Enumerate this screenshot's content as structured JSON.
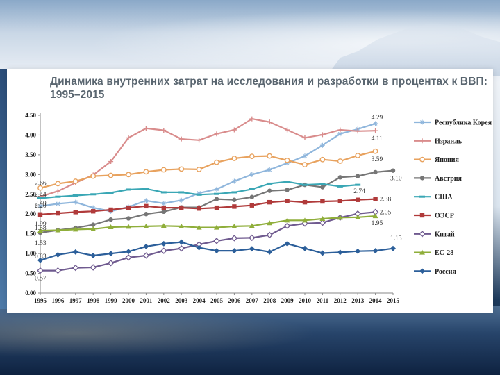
{
  "title": "Динамика внутренних затрат на исследования и разработки в процентах к ВВП: 1995–2015",
  "chart_data": {
    "type": "line",
    "title": "Динамика внутренних затрат на исследования и разработки в процентах к ВВП: 1995–2015",
    "categories": [
      "1995",
      "1996",
      "1997",
      "1998",
      "1999",
      "2000",
      "2001",
      "2002",
      "2003",
      "2004",
      "2005",
      "2006",
      "2007",
      "2008",
      "2009",
      "2010",
      "2011",
      "2012",
      "2013",
      "2014",
      "2015"
    ],
    "yticks": [
      "0.00",
      "0.50",
      "1.00",
      "1.50",
      "2.00",
      "2.50",
      "3.00",
      "3.50",
      "4.00",
      "4.50"
    ],
    "ylim": [
      0,
      4.5
    ],
    "series": [
      {
        "name": "Республика Корея",
        "color": "#8fb6dc",
        "marker": "star",
        "values": [
          2.2,
          2.26,
          2.3,
          2.16,
          2.07,
          2.18,
          2.34,
          2.27,
          2.35,
          2.53,
          2.63,
          2.83,
          3.0,
          3.12,
          3.29,
          3.47,
          3.74,
          4.03,
          4.15,
          4.29,
          null
        ]
      },
      {
        "name": "Израиль",
        "color": "#d98c8c",
        "marker": "plus",
        "values": [
          2.44,
          2.58,
          2.79,
          2.99,
          3.33,
          3.93,
          4.17,
          4.12,
          3.9,
          3.87,
          4.03,
          4.13,
          4.41,
          4.33,
          4.13,
          3.93,
          4.01,
          4.13,
          4.1,
          4.11,
          null
        ]
      },
      {
        "name": "Япония",
        "color": "#e8a25e",
        "marker": "circle-open",
        "values": [
          2.66,
          2.77,
          2.83,
          2.96,
          2.98,
          3.0,
          3.07,
          3.12,
          3.14,
          3.13,
          3.31,
          3.41,
          3.46,
          3.47,
          3.36,
          3.25,
          3.38,
          3.34,
          3.48,
          3.59,
          null
        ]
      },
      {
        "name": "Австрия",
        "color": "#767676",
        "marker": "circle",
        "values": [
          1.53,
          1.59,
          1.65,
          1.73,
          1.86,
          1.89,
          2.0,
          2.06,
          2.17,
          2.17,
          2.38,
          2.36,
          2.43,
          2.59,
          2.61,
          2.74,
          2.68,
          2.93,
          2.96,
          3.06,
          3.1
        ]
      },
      {
        "name": "США",
        "color": "#3aa7b5",
        "marker": "dash",
        "values": [
          2.4,
          2.44,
          2.47,
          2.5,
          2.54,
          2.62,
          2.64,
          2.55,
          2.55,
          2.49,
          2.51,
          2.55,
          2.63,
          2.77,
          2.82,
          2.74,
          2.76,
          2.7,
          2.74,
          null,
          null
        ]
      },
      {
        "name": "ОЭСР",
        "color": "#b03a3a",
        "marker": "square",
        "values": [
          1.99,
          2.02,
          2.05,
          2.07,
          2.11,
          2.16,
          2.2,
          2.16,
          2.16,
          2.14,
          2.16,
          2.19,
          2.22,
          2.3,
          2.33,
          2.3,
          2.32,
          2.33,
          2.36,
          2.38,
          null
        ]
      },
      {
        "name": "Китай",
        "color": "#6f5a8f",
        "marker": "diamond-open",
        "values": [
          0.57,
          0.57,
          0.64,
          0.65,
          0.76,
          0.9,
          0.95,
          1.07,
          1.13,
          1.23,
          1.32,
          1.39,
          1.4,
          1.47,
          1.7,
          1.76,
          1.78,
          1.91,
          2.01,
          2.05,
          null
        ]
      },
      {
        "name": "ЕС-28",
        "color": "#8fae3a",
        "marker": "triangle",
        "values": [
          1.58,
          1.59,
          1.61,
          1.62,
          1.67,
          1.68,
          1.69,
          1.7,
          1.69,
          1.66,
          1.66,
          1.69,
          1.7,
          1.77,
          1.84,
          1.84,
          1.88,
          1.91,
          1.92,
          1.95,
          null
        ]
      },
      {
        "name": "Россия",
        "color": "#2c5f9a",
        "marker": "diamond",
        "values": [
          0.83,
          0.97,
          1.04,
          0.95,
          1.0,
          1.05,
          1.18,
          1.25,
          1.29,
          1.15,
          1.07,
          1.07,
          1.12,
          1.04,
          1.25,
          1.13,
          1.01,
          1.03,
          1.06,
          1.07,
          1.13
        ]
      }
    ],
    "annotations": [
      {
        "text": "4.29",
        "x": "2014",
        "y": 4.29,
        "series": "Республика Корея"
      },
      {
        "text": "4.11",
        "x": "2014",
        "y": 4.11,
        "series": "Израиль"
      },
      {
        "text": "3.59",
        "x": "2014",
        "y": 3.59,
        "series": "Япония"
      },
      {
        "text": "3.10",
        "x": "2015",
        "y": 3.1,
        "series": "Австрия"
      },
      {
        "text": "2.74",
        "x": "2013",
        "y": 2.74,
        "series": "США"
      },
      {
        "text": "2.38",
        "x": "2014",
        "y": 2.38,
        "series": "ОЭСР"
      },
      {
        "text": "2.05",
        "x": "2014",
        "y": 2.05,
        "series": "Китай"
      },
      {
        "text": "1.95",
        "x": "2014",
        "y": 1.95,
        "series": "ЕС-28"
      },
      {
        "text": "1.13",
        "x": "2015",
        "y": 1.13,
        "series": "Россия"
      },
      {
        "text": "2.66",
        "x": "1995",
        "y": 2.66,
        "series": "Япония"
      },
      {
        "text": "2.44",
        "x": "1995",
        "y": 2.44,
        "series": "Израиль"
      },
      {
        "text": "2.40",
        "x": "1995",
        "y": 2.4,
        "series": "США"
      },
      {
        "text": "2.20",
        "x": "1995",
        "y": 2.2,
        "series": "Республика Корея"
      },
      {
        "text": "1.99",
        "x": "1995",
        "y": 1.99,
        "series": "ОЭСР"
      },
      {
        "text": "1.58",
        "x": "1995",
        "y": 1.58,
        "series": "ЕС-28"
      },
      {
        "text": "1.53",
        "x": "1995",
        "y": 1.53,
        "series": "Австрия"
      },
      {
        "text": "0.83",
        "x": "1995",
        "y": 0.83,
        "series": "Россия"
      },
      {
        "text": "0.57",
        "x": "1995",
        "y": 0.57,
        "series": "Китай"
      }
    ],
    "grid": false,
    "legend": "right"
  }
}
